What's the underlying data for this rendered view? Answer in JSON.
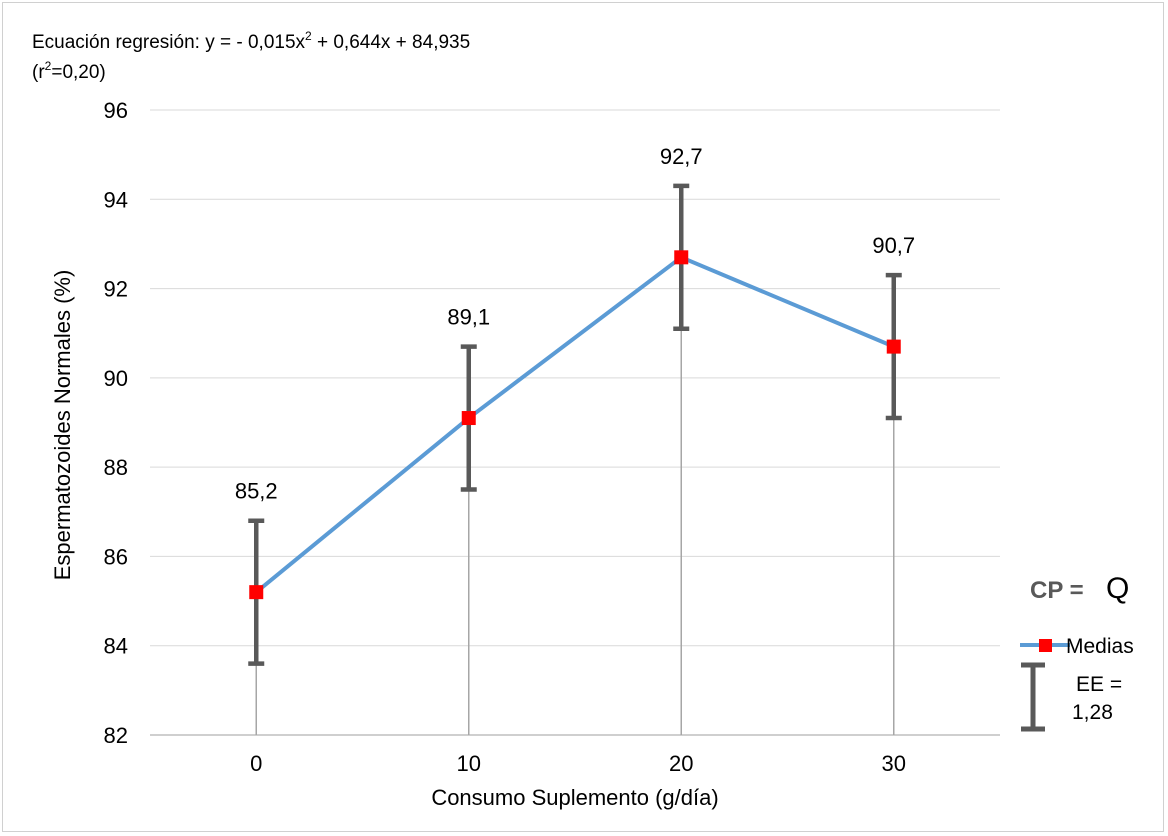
{
  "chart_data": {
    "type": "line",
    "equation_prefix": "Ecuación regresión: y = - 0,015x",
    "equation_sup": "2",
    "equation_suffix": " + 0,644x + 84,935",
    "r2_open": "(r",
    "r2_sup": "2",
    "r2_close": "=0,20)",
    "xlabel": "Consumo Suplemento (g/día)",
    "ylabel": "Espermatozoides Normales (%)",
    "categories": [
      "0",
      "10",
      "20",
      "30"
    ],
    "ylim": [
      82,
      96
    ],
    "yticks": [
      "82",
      "84",
      "86",
      "88",
      "90",
      "92",
      "94",
      "96"
    ],
    "grid": true,
    "series": [
      {
        "name": "Medias",
        "values": [
          85.2,
          89.1,
          92.7,
          90.7
        ],
        "labels": [
          "85,2",
          "89,1",
          "92,7",
          "90,7"
        ],
        "error": 1.6,
        "line_color": "#5b9bd5",
        "marker_color": "#ff0000"
      }
    ],
    "annotation": {
      "cp_label": "CP = ",
      "cp_value": "Q",
      "ee_line1": "EE =",
      "ee_line2": "1,28"
    },
    "legend_position": "right"
  }
}
